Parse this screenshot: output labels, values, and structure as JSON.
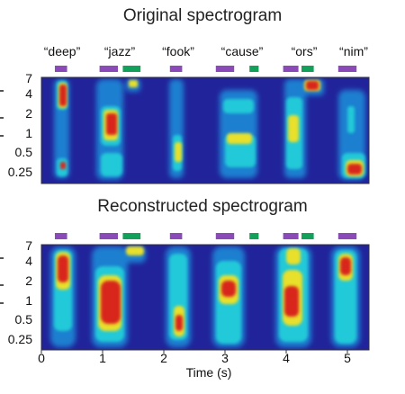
{
  "chart_data": [
    {
      "type": "heatmap",
      "title": "Original spectrogram",
      "ylabel": "",
      "yticks": [
        "7",
        "4",
        "2",
        "1",
        "0.5",
        "0.25"
      ],
      "words": [
        "“deep”",
        "“jazz”",
        "“fook”",
        "“cause”",
        "“ors”",
        "“nim”"
      ],
      "word_centers_s": [
        0.3,
        1.1,
        2.15,
        3.05,
        4.2,
        5.0
      ]
    },
    {
      "type": "heatmap",
      "title": "Reconstructed spectrogram",
      "xlabel": "Time (s)",
      "xticks": [
        "0",
        "1",
        "2",
        "3",
        "4",
        "5"
      ],
      "yticks": [
        "7",
        "4",
        "2",
        "1",
        "0.5",
        "0.25"
      ]
    }
  ],
  "markers": {
    "colors": {
      "purple": "#8a4bb8",
      "green": "#12a05a"
    },
    "segments": [
      {
        "color": "purple",
        "start_s": 0.22,
        "end_s": 0.42
      },
      {
        "color": "purple",
        "start_s": 0.95,
        "end_s": 1.25
      },
      {
        "color": "green",
        "start_s": 1.33,
        "end_s": 1.62
      },
      {
        "color": "purple",
        "start_s": 2.1,
        "end_s": 2.3
      },
      {
        "color": "purple",
        "start_s": 2.85,
        "end_s": 3.15
      },
      {
        "color": "green",
        "start_s": 3.4,
        "end_s": 3.55
      },
      {
        "color": "purple",
        "start_s": 3.95,
        "end_s": 4.2
      },
      {
        "color": "green",
        "start_s": 4.25,
        "end_s": 4.45
      },
      {
        "color": "purple",
        "start_s": 4.85,
        "end_s": 5.15
      }
    ]
  }
}
